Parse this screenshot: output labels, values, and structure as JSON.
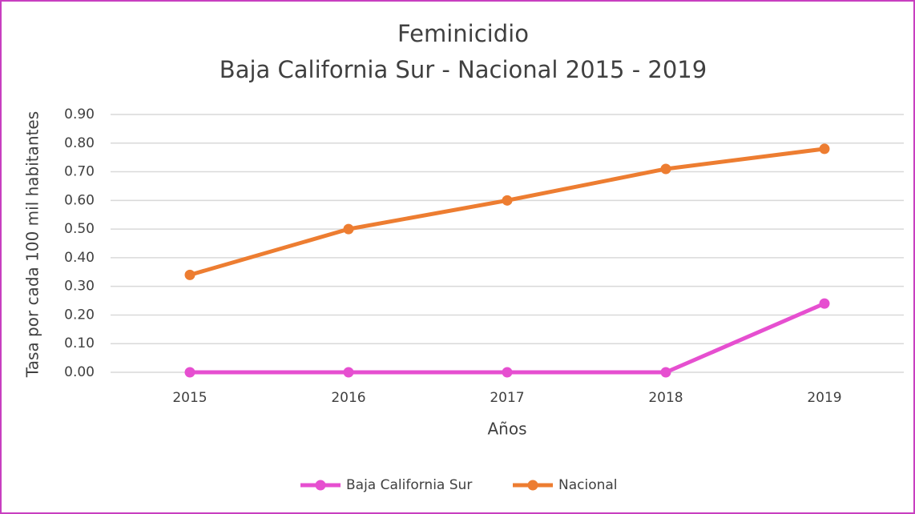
{
  "chart_data": {
    "type": "line",
    "title": "Feminicidio",
    "subtitle": "Baja California Sur - Nacional 2015 - 2019",
    "x_label": "Años",
    "y_label": "Tasa por cada 100 mil habitantes",
    "categories": [
      "2015",
      "2016",
      "2017",
      "2018",
      "2019"
    ],
    "series": [
      {
        "name": "Baja California Sur",
        "color": "#e64fd0",
        "values": [
          0,
          0,
          0,
          0,
          0.24
        ]
      },
      {
        "name": "Nacional",
        "color": "#ed7d31",
        "values": [
          0.34,
          0.5,
          0.6,
          0.71,
          0.78
        ]
      }
    ],
    "ylim": [
      0,
      0.9
    ],
    "yticks": [
      {
        "value": 0,
        "label": "0.00"
      },
      {
        "value": 0.1,
        "label": "0.10"
      },
      {
        "value": 0.2,
        "label": "0.20"
      },
      {
        "value": 0.3,
        "label": "0.30"
      },
      {
        "value": 0.4,
        "label": "0.40"
      },
      {
        "value": 0.5,
        "label": "0.50"
      },
      {
        "value": 0.6,
        "label": "0.60"
      },
      {
        "value": 0.7,
        "label": "0.70"
      },
      {
        "value": 0.8,
        "label": "0.80"
      },
      {
        "value": 0.9,
        "label": "0.90"
      }
    ],
    "grid": true,
    "legend": "bottom"
  }
}
